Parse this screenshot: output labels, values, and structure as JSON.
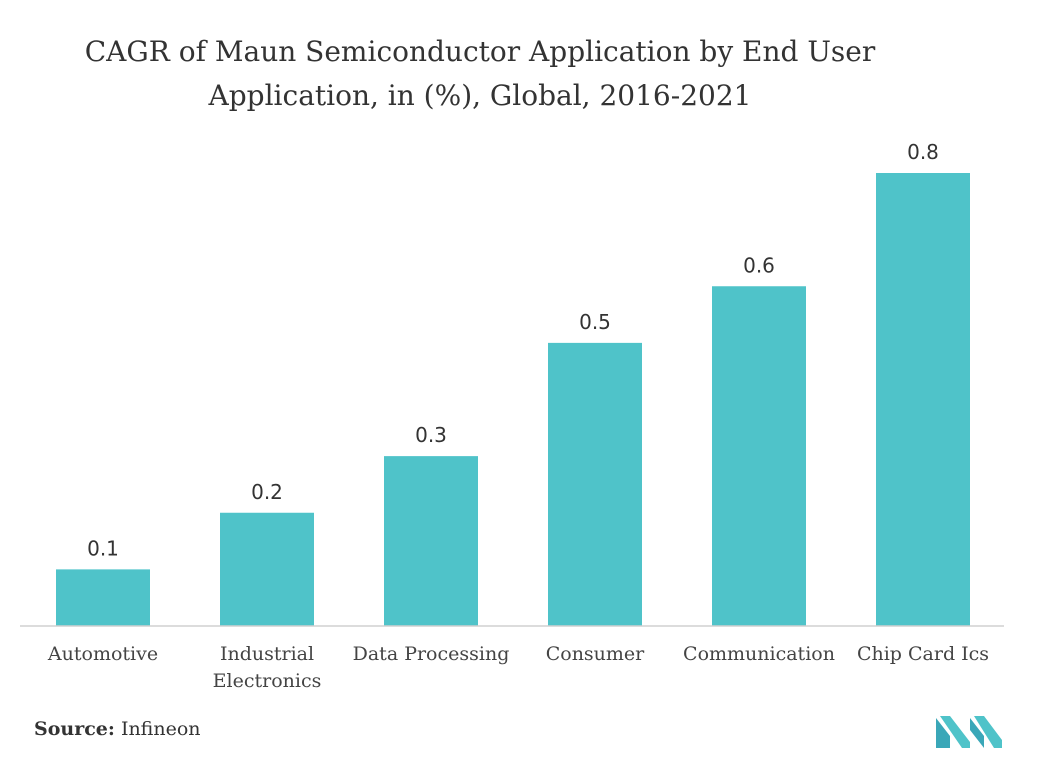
{
  "chart_data": {
    "type": "bar",
    "title_lines": [
      "CAGR of Maun Semiconductor Application by End User",
      "Application, in (%), Global, 2016-2021"
    ],
    "categories": [
      [
        "Automotive"
      ],
      [
        "Industrial",
        "Electronics"
      ],
      [
        "Data Processing"
      ],
      [
        "Consumer"
      ],
      [
        "Communication"
      ],
      [
        "Chip Card Ics"
      ]
    ],
    "values": [
      0.1,
      0.2,
      0.3,
      0.5,
      0.6,
      0.8
    ],
    "value_labels": [
      "0.1",
      "0.2",
      "0.3",
      "0.5",
      "0.6",
      "0.8"
    ],
    "xlabel": "",
    "ylabel": "",
    "ylim": [
      0,
      0.8
    ],
    "grid": false,
    "legend": "none",
    "bar_color": "#4fc3c9"
  },
  "source": {
    "label": "Source:",
    "value": "Infineon"
  },
  "logo": {
    "icon": "mordor-intelligence-logo-icon",
    "color": "#4fc3c9"
  }
}
